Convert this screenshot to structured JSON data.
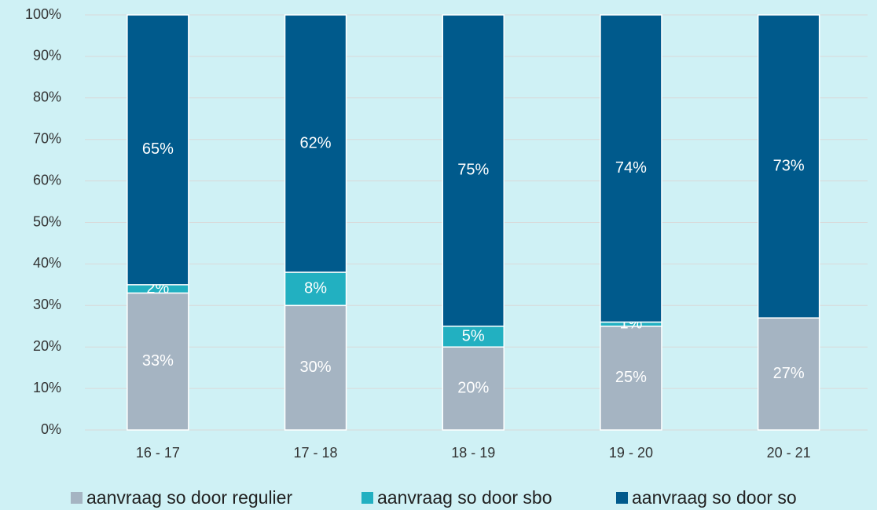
{
  "chart_data": {
    "type": "stacked_bar",
    "categories": [
      "16 - 17",
      "17 - 18",
      "18 - 19",
      "19 - 20",
      "20 - 21"
    ],
    "series": [
      {
        "name": "aanvraag so door regulier",
        "color": "#a5b4c2",
        "values": [
          33,
          30,
          20,
          25,
          27
        ],
        "value_labels": [
          "33%",
          "30%",
          "20%",
          "25%",
          "27%"
        ]
      },
      {
        "name": "aanvraag so door sbo",
        "color": "#22b0c1",
        "values": [
          2,
          8,
          5,
          1,
          null
        ],
        "value_labels": [
          "2%",
          "8%",
          "5%",
          "1%",
          null
        ]
      },
      {
        "name": "aanvraag so door so",
        "color": "#005a8c",
        "values": [
          65,
          62,
          75,
          74,
          73
        ],
        "value_labels": [
          "65%",
          "62%",
          "75%",
          "74%",
          "73%"
        ]
      }
    ],
    "ylim": [
      0,
      100
    ],
    "yticks": [
      {
        "value": 0,
        "label": "0%"
      },
      {
        "value": 10,
        "label": "10%"
      },
      {
        "value": 20,
        "label": "20%"
      },
      {
        "value": 30,
        "label": "30%"
      },
      {
        "value": 40,
        "label": "40%"
      },
      {
        "value": 50,
        "label": "50%"
      },
      {
        "value": 60,
        "label": "60%"
      },
      {
        "value": 70,
        "label": "70%"
      },
      {
        "value": 80,
        "label": "80%"
      },
      {
        "value": 90,
        "label": "90%"
      },
      {
        "value": 100,
        "label": "100%"
      }
    ],
    "grid": true,
    "legend": "bottom"
  }
}
